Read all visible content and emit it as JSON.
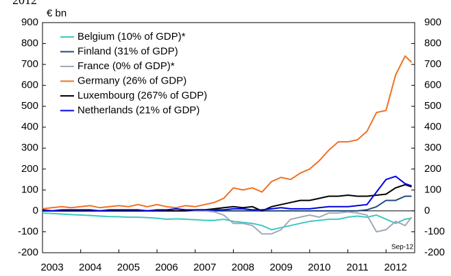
{
  "chart_data": {
    "type": "line",
    "title": "2012",
    "y_label": "€ bn",
    "annotation": "Sep-12",
    "x": [
      2003,
      2003.25,
      2003.5,
      2003.75,
      2004,
      2004.25,
      2004.5,
      2004.75,
      2005,
      2005.25,
      2005.5,
      2005.75,
      2006,
      2006.25,
      2006.5,
      2006.75,
      2007,
      2007.25,
      2007.5,
      2007.75,
      2008,
      2008.25,
      2008.5,
      2008.75,
      2009,
      2009.25,
      2009.5,
      2009.75,
      2010,
      2010.25,
      2010.5,
      2010.75,
      2011,
      2011.25,
      2011.5,
      2011.75,
      2012,
      2012.25,
      2012.5,
      2012.67
    ],
    "series": [
      {
        "name": "Belgium (10% of GDP)*",
        "color": "#3cc8c0",
        "values": [
          -10,
          -12,
          -15,
          -18,
          -20,
          -22,
          -25,
          -27,
          -28,
          -30,
          -30,
          -32,
          -35,
          -40,
          -38,
          -40,
          -42,
          -45,
          -45,
          -40,
          -50,
          -55,
          -60,
          -70,
          -90,
          -80,
          -70,
          -60,
          -50,
          -45,
          -40,
          -40,
          -30,
          -25,
          -30,
          -20,
          -40,
          -60,
          -40,
          -35
        ]
      },
      {
        "name": "Finland (31% of GDP)",
        "color": "#1f497d",
        "values": [
          0,
          0,
          0,
          0,
          0,
          0,
          0,
          0,
          0,
          0,
          0,
          0,
          0,
          0,
          0,
          0,
          0,
          0,
          0,
          0,
          0,
          0,
          0,
          0,
          0,
          0,
          0,
          0,
          0,
          0,
          0,
          0,
          0,
          0,
          5,
          20,
          50,
          50,
          70,
          70
        ]
      },
      {
        "name": "France (0% of GDP)*",
        "color": "#a0a8b8",
        "values": [
          0,
          0,
          0,
          0,
          0,
          0,
          0,
          0,
          0,
          0,
          0,
          0,
          0,
          0,
          0,
          0,
          0,
          0,
          -5,
          -20,
          -60,
          -60,
          -70,
          -110,
          -110,
          -90,
          -40,
          -30,
          -20,
          -30,
          -10,
          -10,
          -5,
          -10,
          -20,
          -100,
          -90,
          -50,
          -70,
          -30
        ]
      },
      {
        "name": "Germany (26% of GDP)",
        "color": "#f07020",
        "values": [
          10,
          15,
          20,
          15,
          20,
          25,
          15,
          20,
          25,
          20,
          30,
          20,
          30,
          20,
          15,
          25,
          20,
          30,
          40,
          60,
          110,
          100,
          110,
          90,
          140,
          160,
          150,
          180,
          200,
          240,
          290,
          330,
          330,
          340,
          380,
          470,
          480,
          650,
          740,
          710
        ]
      },
      {
        "name": "Luxembourg (267% of GDP)",
        "color": "#000000",
        "values": [
          0,
          0,
          0,
          0,
          0,
          0,
          0,
          0,
          0,
          0,
          0,
          0,
          0,
          0,
          0,
          0,
          5,
          5,
          10,
          15,
          20,
          15,
          20,
          0,
          20,
          30,
          40,
          50,
          50,
          60,
          70,
          70,
          75,
          70,
          70,
          75,
          80,
          110,
          125,
          115
        ]
      },
      {
        "name": "Netherlands (21% of GDP)",
        "color": "#0000e0",
        "values": [
          5,
          0,
          5,
          5,
          5,
          5,
          0,
          5,
          5,
          5,
          5,
          0,
          5,
          5,
          10,
          5,
          5,
          5,
          5,
          5,
          10,
          10,
          5,
          5,
          10,
          15,
          10,
          10,
          10,
          15,
          20,
          20,
          20,
          25,
          30,
          90,
          150,
          165,
          130,
          120
        ]
      }
    ],
    "xlim": [
      2003,
      2012.75
    ],
    "xticks": [
      2003,
      2004,
      2005,
      2006,
      2007,
      2008,
      2009,
      2010,
      2011,
      2012
    ],
    "ylim": [
      -200,
      900
    ],
    "yticks": [
      -200,
      -100,
      0,
      100,
      200,
      300,
      400,
      500,
      600,
      700,
      800,
      900
    ],
    "y2lim": [
      -200,
      900
    ],
    "y2ticks": [
      -200,
      -100,
      0,
      100,
      200,
      300,
      400,
      500,
      600,
      700,
      800,
      900
    ],
    "legend": "upper left"
  }
}
